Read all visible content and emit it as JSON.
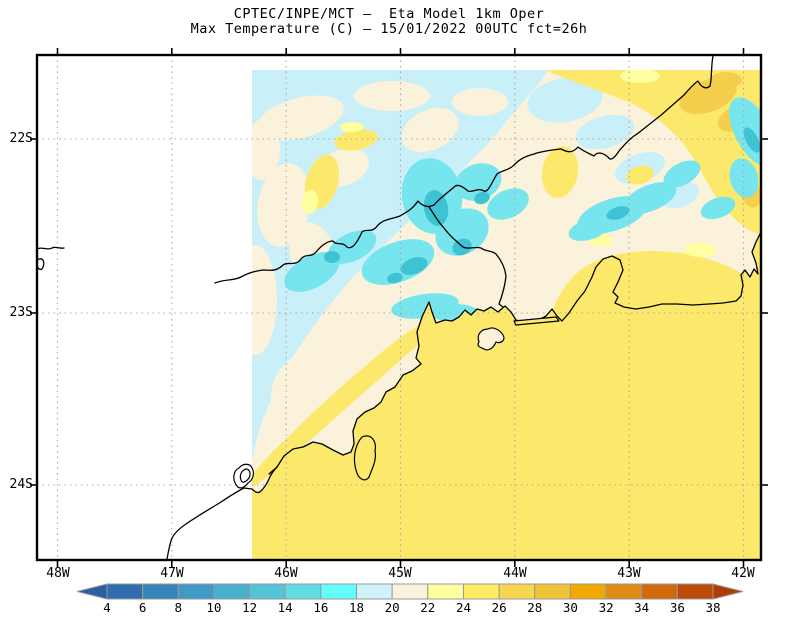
{
  "title": {
    "line1": "CPTEC/INPE/MCT —  Eta Model 1km Oper",
    "line2": "Max Temperature (C) — 15/01/2022 00UTC fct=26h"
  },
  "axes": {
    "y_labels": [
      "22S",
      "23S",
      "24S"
    ],
    "x_labels": [
      "48W",
      "47W",
      "46W",
      "45W",
      "44W",
      "43W",
      "42W"
    ]
  },
  "colorbar": {
    "tick_labels": [
      "4",
      "6",
      "8",
      "10",
      "12",
      "14",
      "16",
      "18",
      "20",
      "22",
      "24",
      "26",
      "28",
      "30",
      "32",
      "34",
      "36",
      "38"
    ],
    "segment_colors": [
      "#2F6DAE",
      "#3684BA",
      "#3F9AC5",
      "#48B0CE",
      "#53C5D7",
      "#5FDDE3",
      "#66FCFC",
      "#CFF2FB",
      "#FBF2DB",
      "#FFFF9F",
      "#FFEC67",
      "#F8D64F",
      "#EFC238",
      "#F1A802",
      "#E18D15",
      "#D2690C",
      "#BC4A08"
    ],
    "left_arrow_color": "#2B5EA3",
    "right_arrow_color": "#AE3D06",
    "outline_color": "#999999"
  },
  "map_colors": {
    "ocean_and_warm_yellow": "#FCE96C",
    "cream_20_22": "#FBF2DB",
    "pale_blue_18_20": "#C9EFF9",
    "cyan_14_16": "#76E5EE",
    "bright_cyan_12_14": "#3EC3D4",
    "pale_yellow_22_24": "#FFFF9F",
    "gold_26_28": "#F5CE4D",
    "gridline": "#A9A9A9",
    "coastline": "#000000"
  }
}
